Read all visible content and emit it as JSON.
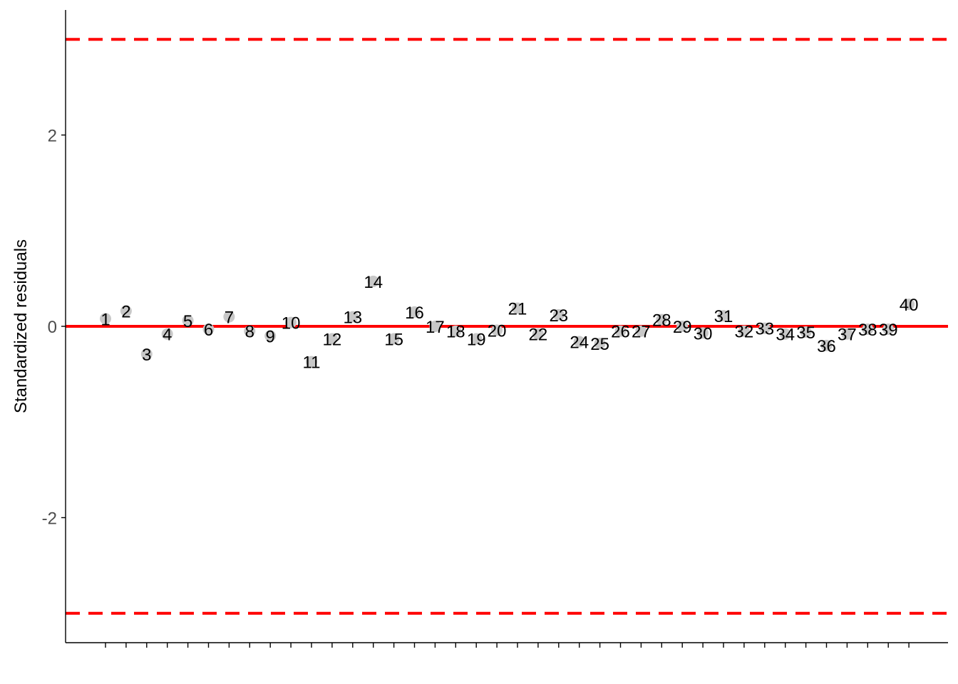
{
  "chart_data": {
    "type": "scatter",
    "ylabel": "Standardized residuals",
    "xlabel": "",
    "ylim": [
      -3.3,
      3.3
    ],
    "y_ticks": [
      {
        "value": -2,
        "label": "-2"
      },
      {
        "value": 0,
        "label": "0"
      },
      {
        "value": 2,
        "label": "2"
      }
    ],
    "reference_lines": [
      {
        "y": 3,
        "style": "dashed",
        "color": "#ff0000"
      },
      {
        "y": 0,
        "style": "solid",
        "color": "#ff0000"
      },
      {
        "y": -3,
        "style": "dashed",
        "color": "#ff0000"
      }
    ],
    "point_color": "#c8c8c8",
    "points": [
      {
        "x": 1,
        "y": 0.08,
        "label": "1"
      },
      {
        "x": 2,
        "y": 0.16,
        "label": "2"
      },
      {
        "x": 3,
        "y": -0.29,
        "label": "3"
      },
      {
        "x": 4,
        "y": -0.08,
        "label": "4"
      },
      {
        "x": 5,
        "y": 0.06,
        "label": "5"
      },
      {
        "x": 6,
        "y": -0.03,
        "label": "6"
      },
      {
        "x": 7,
        "y": 0.1,
        "label": "7"
      },
      {
        "x": 8,
        "y": -0.05,
        "label": "8"
      },
      {
        "x": 9,
        "y": -0.1,
        "label": "9"
      },
      {
        "x": 10,
        "y": 0.04,
        "label": "10"
      },
      {
        "x": 11,
        "y": -0.37,
        "label": "11"
      },
      {
        "x": 12,
        "y": -0.13,
        "label": "12"
      },
      {
        "x": 13,
        "y": 0.1,
        "label": "13"
      },
      {
        "x": 14,
        "y": 0.47,
        "label": "14"
      },
      {
        "x": 15,
        "y": -0.13,
        "label": "15"
      },
      {
        "x": 16,
        "y": 0.15,
        "label": "16"
      },
      {
        "x": 17,
        "y": 0.0,
        "label": "17"
      },
      {
        "x": 18,
        "y": -0.05,
        "label": "18"
      },
      {
        "x": 19,
        "y": -0.13,
        "label": "19"
      },
      {
        "x": 20,
        "y": -0.04,
        "label": "20"
      },
      {
        "x": 21,
        "y": 0.19,
        "label": "21"
      },
      {
        "x": 22,
        "y": -0.08,
        "label": "22"
      },
      {
        "x": 23,
        "y": 0.12,
        "label": "23"
      },
      {
        "x": 24,
        "y": -0.16,
        "label": "24"
      },
      {
        "x": 25,
        "y": -0.18,
        "label": "25"
      },
      {
        "x": 26,
        "y": -0.05,
        "label": "26"
      },
      {
        "x": 27,
        "y": -0.05,
        "label": "27"
      },
      {
        "x": 28,
        "y": 0.07,
        "label": "28"
      },
      {
        "x": 29,
        "y": 0.0,
        "label": "29"
      },
      {
        "x": 30,
        "y": -0.07,
        "label": "30"
      },
      {
        "x": 31,
        "y": 0.11,
        "label": "31"
      },
      {
        "x": 32,
        "y": -0.05,
        "label": "32"
      },
      {
        "x": 33,
        "y": -0.02,
        "label": "33"
      },
      {
        "x": 34,
        "y": -0.08,
        "label": "34"
      },
      {
        "x": 35,
        "y": -0.06,
        "label": "35"
      },
      {
        "x": 36,
        "y": -0.2,
        "label": "36"
      },
      {
        "x": 37,
        "y": -0.08,
        "label": "37"
      },
      {
        "x": 38,
        "y": -0.03,
        "label": "38"
      },
      {
        "x": 39,
        "y": -0.03,
        "label": "39"
      },
      {
        "x": 40,
        "y": 0.23,
        "label": "40"
      }
    ],
    "x_ticks": [
      1,
      2,
      3,
      4,
      5,
      6,
      7,
      8,
      9,
      10,
      11,
      12,
      13,
      14,
      15,
      16,
      17,
      18,
      19,
      20,
      21,
      22,
      23,
      24,
      25,
      26,
      27,
      28,
      29,
      30,
      31,
      32,
      33,
      34,
      35,
      36,
      37,
      38,
      39,
      40
    ],
    "grid": false,
    "legend": "none"
  }
}
